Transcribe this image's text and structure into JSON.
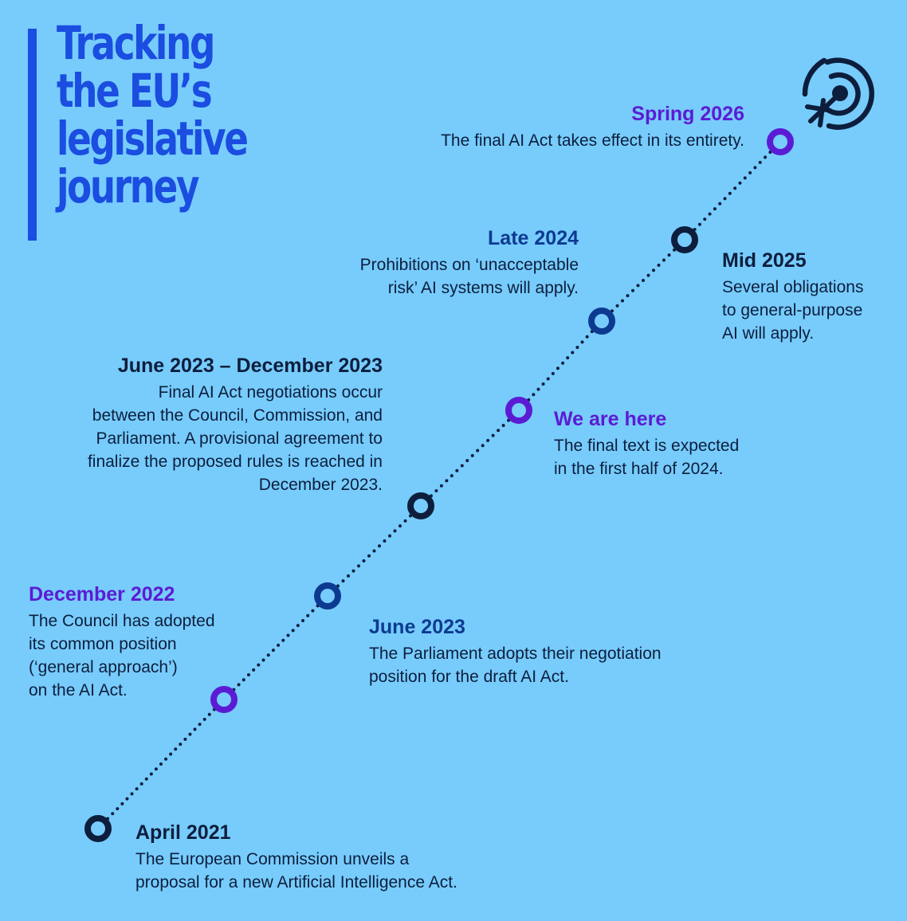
{
  "title_lines": [
    "Tracking",
    "the EU’s",
    "legislative",
    "journey"
  ],
  "colors": {
    "background": "#77ccfc",
    "title": "#1a4de0",
    "purple": "#5b1bd4",
    "dark_blue": "#0d3a91",
    "navy": "#0d1e3d"
  },
  "icon": "target-with-airplane-icon",
  "events": [
    {
      "date": "Spring 2026",
      "lines": [
        "The final AI Act takes effect in its entirety."
      ],
      "color": "#5b1bd4"
    },
    {
      "date": "Mid 2025",
      "lines": [
        "Several obligations",
        "to general-purpose",
        "AI will apply."
      ],
      "color": "#0d1e3d"
    },
    {
      "date": "Late 2024",
      "lines": [
        "Prohibitions on ‘unacceptable",
        "risk’ AI systems will apply."
      ],
      "color": "#0d3a91"
    },
    {
      "date": "We are here",
      "lines": [
        "The final text is expected",
        "in the first half of 2024."
      ],
      "color": "#5b1bd4"
    },
    {
      "date": "June 2023 – December 2023",
      "lines": [
        "Final AI Act negotiations occur",
        "between the Council, Commission, and",
        "Parliament. A provisional agreement to",
        "finalize the proposed rules is reached in",
        "December 2023."
      ],
      "color": "#0d1e3d"
    },
    {
      "date": "June 2023",
      "lines": [
        "The Parliament adopts their negotiation",
        "position for the draft AI Act."
      ],
      "color": "#0d3a91"
    },
    {
      "date": "December 2022",
      "lines": [
        "The Council has adopted",
        "its common position",
        "(‘general approach’)",
        "on the AI Act."
      ],
      "color": "#5b1bd4"
    },
    {
      "date": "April 2021",
      "lines": [
        "The European Commission unveils a",
        "proposal for a new Artificial Intelligence Act."
      ],
      "color": "#0d1e3d"
    }
  ]
}
